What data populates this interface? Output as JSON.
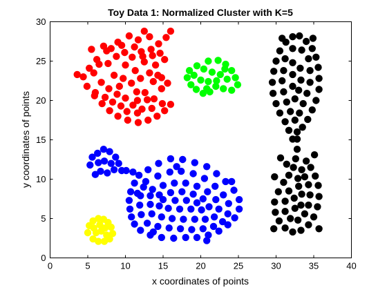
{
  "chart_data": {
    "type": "scatter",
    "title": "Toy Data 1: Normalized Cluster with K=5",
    "xlabel": "x coordinates of points",
    "ylabel": "y coordinates of points",
    "xlim": [
      0,
      40
    ],
    "ylim": [
      0,
      30
    ],
    "xticks": [
      "0",
      "5",
      "10",
      "15",
      "20",
      "25",
      "30",
      "35",
      "40"
    ],
    "yticks": [
      "0",
      "5",
      "10",
      "15",
      "20",
      "25",
      "30"
    ],
    "grid": false,
    "series": [
      {
        "color": "#ff0000",
        "points": [
          [
            12.5,
            28.8
          ],
          [
            10.5,
            28.2
          ],
          [
            9,
            27.4
          ],
          [
            7.5,
            26.3
          ],
          [
            6.2,
            25.2
          ],
          [
            5.2,
            24.1
          ],
          [
            4.4,
            23
          ],
          [
            3.6,
            23.3
          ],
          [
            4.9,
            21.8
          ],
          [
            5.9,
            20.6
          ],
          [
            6.9,
            19.6
          ],
          [
            7.9,
            18.7
          ],
          [
            9,
            18
          ],
          [
            10.3,
            17.5
          ],
          [
            11.7,
            17.2
          ],
          [
            13,
            17.5
          ],
          [
            14.2,
            18
          ],
          [
            15.2,
            18.7
          ],
          [
            16,
            19.5
          ],
          [
            12.6,
            21
          ],
          [
            11.6,
            20
          ],
          [
            13.8,
            20.2
          ],
          [
            14.8,
            21.5
          ],
          [
            15.6,
            22.2
          ],
          [
            13.4,
            26.5
          ],
          [
            14.4,
            27.2
          ],
          [
            15.4,
            28
          ],
          [
            16,
            28.8
          ],
          [
            11.2,
            26.8
          ],
          [
            8.8,
            25.6
          ],
          [
            10,
            24.5
          ],
          [
            11.3,
            23.8
          ],
          [
            12.5,
            24.9
          ],
          [
            13.6,
            25.7
          ],
          [
            14.6,
            26
          ],
          [
            15.2,
            25.2
          ],
          [
            7.7,
            24.7
          ],
          [
            8.5,
            23.2
          ],
          [
            9.7,
            22.8
          ],
          [
            10.8,
            22.2
          ],
          [
            12,
            22.8
          ],
          [
            13.2,
            23.5
          ],
          [
            14,
            24.5
          ],
          [
            6.8,
            22.3
          ],
          [
            7.8,
            21.5
          ],
          [
            8.9,
            20.8
          ],
          [
            10,
            20.3
          ],
          [
            11,
            19.4
          ],
          [
            12.2,
            18.9
          ],
          [
            13.5,
            19
          ],
          [
            14.9,
            19.6
          ],
          [
            5.8,
            23.5
          ],
          [
            6.5,
            24.6
          ],
          [
            9.5,
            27
          ],
          [
            11.7,
            27.7
          ],
          [
            13.2,
            28.1
          ],
          [
            8.3,
            19.8
          ],
          [
            9.2,
            21.8
          ],
          [
            10.9,
            25.5
          ],
          [
            12.1,
            26.2
          ],
          [
            7.1,
            26.9
          ],
          [
            6,
            21
          ],
          [
            5.5,
            26.5
          ],
          [
            14.8,
            22.9
          ],
          [
            10.2,
            18.6
          ],
          [
            11.6,
            18.4
          ],
          [
            12.9,
            20.1
          ],
          [
            8.1,
            26.6
          ],
          [
            9.9,
            26.1
          ],
          [
            11.5,
            21.1
          ],
          [
            13.7,
            22.4
          ],
          [
            12.3,
            25.6
          ],
          [
            14.3,
            23.2
          ],
          [
            7.3,
            20.4
          ],
          [
            9.4,
            19.3
          ]
        ]
      },
      {
        "color": "#00ff00",
        "points": [
          [
            21,
            25
          ],
          [
            22.3,
            25.1
          ],
          [
            23.3,
            24.6
          ],
          [
            24.1,
            23.8
          ],
          [
            24.6,
            22.9
          ],
          [
            24.9,
            22
          ],
          [
            24.1,
            21.3
          ],
          [
            23,
            21.5
          ],
          [
            22,
            21.8
          ],
          [
            21.2,
            21.1
          ],
          [
            20.3,
            20.9
          ],
          [
            19.4,
            21.4
          ],
          [
            18.7,
            22
          ],
          [
            18.2,
            22.9
          ],
          [
            18.5,
            23.8
          ],
          [
            19.5,
            24.4
          ],
          [
            20.4,
            24
          ],
          [
            21.5,
            23.6
          ],
          [
            22.6,
            23.3
          ],
          [
            23.5,
            22.7
          ],
          [
            20,
            22.6
          ],
          [
            21,
            22.4
          ],
          [
            22.1,
            22.5
          ],
          [
            19.1,
            23.2
          ],
          [
            23.2,
            24
          ],
          [
            20.8,
            21.5
          ]
        ]
      },
      {
        "color": "#0000ff",
        "points": [
          [
            5.3,
            11.8
          ],
          [
            5.6,
            12.8
          ],
          [
            6.3,
            13.3
          ],
          [
            7.1,
            13.8
          ],
          [
            7.9,
            13.5
          ],
          [
            8.7,
            12.8
          ],
          [
            9.1,
            12
          ],
          [
            8.5,
            11.2
          ],
          [
            7.6,
            10.8
          ],
          [
            6.7,
            11
          ],
          [
            6,
            10.6
          ],
          [
            7.2,
            12.3
          ],
          [
            8.1,
            12
          ],
          [
            6.4,
            12.1
          ],
          [
            9.5,
            11.1
          ],
          [
            10.1,
            11.1
          ],
          [
            11,
            10.9
          ],
          [
            11.8,
            10.5
          ],
          [
            13,
            11.2
          ],
          [
            14.4,
            12
          ],
          [
            16,
            12.6
          ],
          [
            17.6,
            12.5
          ],
          [
            19.2,
            12.1
          ],
          [
            20.8,
            11.6
          ],
          [
            22.1,
            10.7
          ],
          [
            23.3,
            9.7
          ],
          [
            24.4,
            8.6
          ],
          [
            25.1,
            7.4
          ],
          [
            25.1,
            6.2
          ],
          [
            24.5,
            5.1
          ],
          [
            23.6,
            4.2
          ],
          [
            22.4,
            3.4
          ],
          [
            21,
            2.9
          ],
          [
            19.5,
            2.6
          ],
          [
            18,
            2.6
          ],
          [
            16.4,
            2.5
          ],
          [
            14.8,
            2.6
          ],
          [
            13.3,
            2.9
          ],
          [
            12,
            3.5
          ],
          [
            11.2,
            4.3
          ],
          [
            10.8,
            5.2
          ],
          [
            10.6,
            6.2
          ],
          [
            10.5,
            7.3
          ],
          [
            10.7,
            8.4
          ],
          [
            11.2,
            9.5
          ],
          [
            12.7,
            9.7
          ],
          [
            14.3,
            10.4
          ],
          [
            15.9,
            10.9
          ],
          [
            17.4,
            11
          ],
          [
            19,
            10.7
          ],
          [
            20.5,
            10.1
          ],
          [
            21.9,
            9.1
          ],
          [
            23,
            8
          ],
          [
            23.7,
            6.9
          ],
          [
            23.6,
            5.6
          ],
          [
            22.9,
            4.6
          ],
          [
            21.7,
            4
          ],
          [
            20.3,
            3.7
          ],
          [
            18.8,
            3.6
          ],
          [
            17.3,
            3.7
          ],
          [
            15.8,
            3.8
          ],
          [
            14.3,
            4
          ],
          [
            12.9,
            4.4
          ],
          [
            12.1,
            5.5
          ],
          [
            11.9,
            6.7
          ],
          [
            12,
            7.9
          ],
          [
            12.4,
            9
          ],
          [
            13.6,
            8.7
          ],
          [
            15,
            9.2
          ],
          [
            16.5,
            9.5
          ],
          [
            18,
            9.5
          ],
          [
            19.5,
            9.1
          ],
          [
            20.9,
            8.4
          ],
          [
            22,
            7.4
          ],
          [
            22.4,
            6.2
          ],
          [
            21.8,
            5.2
          ],
          [
            20.6,
            4.9
          ],
          [
            19.2,
            4.9
          ],
          [
            17.7,
            4.9
          ],
          [
            16.2,
            5
          ],
          [
            14.8,
            5.2
          ],
          [
            13.5,
            5.6
          ],
          [
            13.3,
            6.8
          ],
          [
            13.3,
            7.9
          ],
          [
            14.5,
            8
          ],
          [
            16,
            8.3
          ],
          [
            17.5,
            8.4
          ],
          [
            19,
            8.1
          ],
          [
            20.3,
            7.5
          ],
          [
            21.1,
            6.5
          ],
          [
            20.1,
            6.1
          ],
          [
            18.7,
            6.2
          ],
          [
            17.2,
            6.2
          ],
          [
            15.7,
            6.3
          ],
          [
            14.5,
            6.6
          ],
          [
            15,
            7.4
          ],
          [
            16.6,
            7.3
          ],
          [
            18.1,
            7.3
          ],
          [
            19.5,
            7
          ],
          [
            16.8,
            11.6
          ],
          [
            13.7,
            3.3
          ],
          [
            24.1,
            9.7
          ],
          [
            11.6,
            8.2
          ],
          [
            20.8,
            2.2
          ]
        ]
      },
      {
        "color": "#ffff00",
        "points": [
          [
            5,
            3.2
          ],
          [
            5.2,
            4.1
          ],
          [
            5.7,
            4.7
          ],
          [
            6.4,
            5
          ],
          [
            7.1,
            4.9
          ],
          [
            7.7,
            4.5
          ],
          [
            8.1,
            3.9
          ],
          [
            8.3,
            3.1
          ],
          [
            7.9,
            2.4
          ],
          [
            7.2,
            2.1
          ],
          [
            6.4,
            2.1
          ],
          [
            5.7,
            2.4
          ],
          [
            6.1,
            3.2
          ],
          [
            6.8,
            3.4
          ],
          [
            7.3,
            3.8
          ],
          [
            6.6,
            4.2
          ],
          [
            5.8,
            3.8
          ],
          [
            7.5,
            2.9
          ]
        ]
      },
      {
        "color": "#000000",
        "points": [
          [
            30.5,
            26.3
          ],
          [
            31.3,
            27.4
          ],
          [
            32.2,
            28.1
          ],
          [
            33.1,
            28.2
          ],
          [
            34,
            27.5
          ],
          [
            34.8,
            26.6
          ],
          [
            35.3,
            25.5
          ],
          [
            35.6,
            24.2
          ],
          [
            35.7,
            22.8
          ],
          [
            35.7,
            21.4
          ],
          [
            35.3,
            20
          ],
          [
            34.8,
            18.8
          ],
          [
            34.2,
            17.6
          ],
          [
            33.5,
            16.6
          ],
          [
            32.8,
            16
          ],
          [
            32.2,
            15.1
          ],
          [
            31.7,
            16.2
          ],
          [
            31.2,
            17.3
          ],
          [
            30.5,
            18.4
          ],
          [
            30,
            19.6
          ],
          [
            29.6,
            20.9
          ],
          [
            29.5,
            22.3
          ],
          [
            29.7,
            23.7
          ],
          [
            30,
            25
          ],
          [
            31.2,
            25.3
          ],
          [
            32.2,
            26.6
          ],
          [
            33.4,
            26.4
          ],
          [
            34.3,
            25.3
          ],
          [
            34.5,
            23.8
          ],
          [
            34.5,
            22.3
          ],
          [
            34.1,
            20.9
          ],
          [
            33.6,
            19.6
          ],
          [
            33.1,
            18.4
          ],
          [
            32.5,
            17.5
          ],
          [
            31.9,
            18.6
          ],
          [
            31.4,
            19.8
          ],
          [
            31,
            21.1
          ],
          [
            30.8,
            22.5
          ],
          [
            31,
            23.8
          ],
          [
            32.2,
            24.8
          ],
          [
            33.2,
            24.1
          ],
          [
            33.3,
            22.6
          ],
          [
            33,
            21.3
          ],
          [
            32.5,
            20.2
          ],
          [
            32.2,
            21.8
          ],
          [
            32.2,
            23.3
          ],
          [
            32.8,
            13.8
          ],
          [
            32.6,
            12.6
          ],
          [
            32.3,
            11.5
          ],
          [
            31.7,
            10.5
          ],
          [
            31,
            9.6
          ],
          [
            30.3,
            8.4
          ],
          [
            29.8,
            7.1
          ],
          [
            29.9,
            5.8
          ],
          [
            30.4,
            4.7
          ],
          [
            31.2,
            3.8
          ],
          [
            32.2,
            3.3
          ],
          [
            33.3,
            3.5
          ],
          [
            34.3,
            4.2
          ],
          [
            35,
            5.2
          ],
          [
            35.5,
            6.5
          ],
          [
            35.7,
            7.8
          ],
          [
            35.6,
            9.2
          ],
          [
            35.2,
            10.4
          ],
          [
            34.6,
            11.5
          ],
          [
            34,
            12.3
          ],
          [
            33.4,
            11.2
          ],
          [
            32.9,
            10.1
          ],
          [
            31.7,
            8.5
          ],
          [
            31.2,
            7.2
          ],
          [
            31.2,
            5.9
          ],
          [
            31.9,
            5
          ],
          [
            32.9,
            4.8
          ],
          [
            33.8,
            5.6
          ],
          [
            34.3,
            6.7
          ],
          [
            34.5,
            8
          ],
          [
            34.3,
            9.3
          ],
          [
            33.8,
            10.3
          ],
          [
            33,
            9.1
          ],
          [
            32.4,
            7.6
          ],
          [
            32.5,
            6.3
          ],
          [
            33.3,
            6.7
          ],
          [
            33.4,
            8.1
          ],
          [
            32.8,
            15.1
          ],
          [
            31.4,
            11.9
          ],
          [
            30.6,
            12.7
          ],
          [
            29.8,
            10.3
          ],
          [
            35.1,
            13.1
          ],
          [
            30.8,
            27.9
          ],
          [
            34.9,
            27.9
          ],
          [
            29.7,
            3.7
          ],
          [
            35.7,
            3.7
          ]
        ]
      }
    ]
  }
}
